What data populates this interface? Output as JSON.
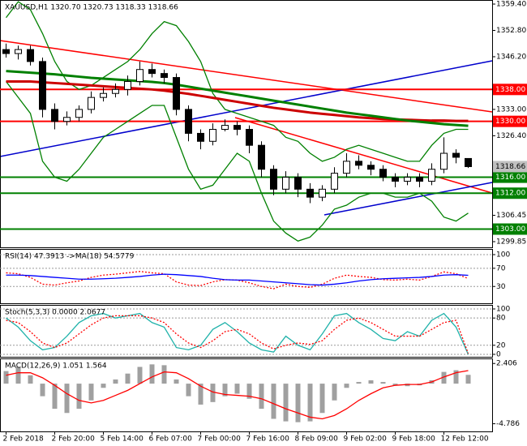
{
  "chart_data": [
    {
      "type": "candlestick",
      "title": "XAUUSD,H1  1320.70 1320.73 1318.33 1318.66",
      "categories": [
        "2 Feb 2018",
        null,
        null,
        null,
        "2 Feb 20:00",
        null,
        null,
        null,
        "5 Feb 14:00",
        null,
        null,
        null,
        "6 Feb 07:00",
        null,
        null,
        null,
        "7 Feb 00:00",
        null,
        null,
        null,
        "7 Feb 16:00",
        null,
        null,
        null,
        "8 Feb 09:00",
        null,
        null,
        null,
        "9 Feb 02:00",
        null,
        null,
        null,
        "9 Feb 18:00",
        null,
        null,
        null,
        "12 Feb 12:00",
        null,
        null
      ],
      "open": [
        1348,
        1347,
        1348,
        1345,
        1333,
        1330,
        1331,
        1333,
        1336,
        1337,
        1338,
        1340,
        1343,
        1342,
        1341,
        1333,
        1327,
        1325,
        1328,
        1329,
        1328,
        1324,
        1318,
        1313,
        1316,
        1313,
        1311,
        1313,
        1317,
        1320,
        1319,
        1318,
        1316,
        1315,
        1316,
        1315,
        1318,
        1322,
        1320.7
      ],
      "high": [
        1349.5,
        1349,
        1349,
        1346,
        1334.5,
        1332.5,
        1334,
        1337.5,
        1338.5,
        1339.5,
        1341.5,
        1345,
        1344.5,
        1343,
        1342,
        1334,
        1328,
        1329.5,
        1330.5,
        1330,
        1329,
        1325,
        1319,
        1317.5,
        1317,
        1314.5,
        1314,
        1318.5,
        1322,
        1321.5,
        1320,
        1319,
        1317,
        1317,
        1317,
        1319.5,
        1326,
        1323,
        1320.73
      ],
      "low": [
        1346,
        1345.5,
        1344,
        1331,
        1328,
        1329,
        1330,
        1332,
        1335,
        1336,
        1336.5,
        1339,
        1341,
        1339.5,
        1331.5,
        1325,
        1323,
        1324,
        1327.5,
        1326.5,
        1322,
        1316,
        1311.5,
        1312,
        1311,
        1309.5,
        1310,
        1312,
        1316,
        1318,
        1316.5,
        1315,
        1313.5,
        1314,
        1313.5,
        1314,
        1317,
        1319.5,
        1318.33
      ],
      "close": [
        1347,
        1348,
        1345,
        1333,
        1330,
        1331,
        1333,
        1336,
        1337,
        1338,
        1340,
        1343,
        1342,
        1341,
        1333,
        1327,
        1325,
        1328,
        1329,
        1328,
        1324,
        1318,
        1313,
        1316,
        1313,
        1311,
        1313,
        1317,
        1320,
        1319,
        1318,
        1316,
        1315,
        1316,
        1315,
        1318,
        1322,
        1321,
        1318.66
      ],
      "up_color": "#ffffff",
      "down_color": "#000000",
      "series": [
        {
          "color": "#008000",
          "values": [
            1356,
            1360,
            1358,
            1352,
            1345,
            1340,
            1338,
            1339,
            1341,
            1343,
            1345,
            1348,
            1352,
            1355,
            1354,
            1350,
            1345,
            1337,
            1333,
            1332,
            1331,
            1330,
            1329,
            1326,
            1325,
            1322,
            1320,
            1321,
            1323,
            1324,
            1323,
            1322,
            1321,
            1320,
            1320,
            1324,
            1327,
            1328,
            1328
          ]
        },
        {
          "color": "#008000",
          "values": [
            1340,
            1336,
            1332,
            1320,
            1316,
            1315,
            1318,
            1322,
            1326,
            1328,
            1330,
            1332,
            1334,
            1334,
            1326,
            1318,
            1313,
            1314,
            1318,
            1322,
            1320,
            1312,
            1305,
            1302,
            1300,
            1301,
            1304,
            1308,
            1309,
            1311,
            1312,
            1312,
            1311,
            1311,
            1312,
            1310,
            1306,
            1305,
            1307
          ]
        },
        {
          "color": "#cc0000",
          "style": "thick",
          "values": [
            1340,
            1340,
            1340,
            1339.8,
            1339.6,
            1339.4,
            1339.2,
            1339,
            1338.8,
            1338.6,
            1338.4,
            1338.2,
            1338,
            1337.7,
            1337.3,
            1336.9,
            1336.4,
            1335.9,
            1335.4,
            1334.9,
            1334.4,
            1333.9,
            1333.4,
            1333,
            1332.6,
            1332.2,
            1331.9,
            1331.6,
            1331.3,
            1331,
            1330.8,
            1330.6,
            1330.5,
            1330.4,
            1330.3,
            1330.2,
            1330.2,
            1330.1,
            1330.1
          ]
        },
        {
          "color": "#008000",
          "style": "thick",
          "values": [
            1342.6,
            1342.4,
            1342.2,
            1342,
            1341.8,
            1341.5,
            1341.2,
            1340.9,
            1340.7,
            1340.5,
            1340.3,
            1340.1,
            1339.9,
            1339.6,
            1339.2,
            1338.7,
            1338.2,
            1337.7,
            1337.2,
            1336.7,
            1336.2,
            1335.7,
            1335.2,
            1334.7,
            1334.2,
            1333.7,
            1333.2,
            1332.7,
            1332.2,
            1331.8,
            1331.4,
            1331,
            1330.6,
            1330.2,
            1329.9,
            1329.6,
            1329.3,
            1329.1,
            1328.9
          ]
        }
      ],
      "ylim": [
        1298.43,
        1360.42
      ],
      "yticks": [
        {
          "value": 1359.4,
          "label": "1359.40"
        },
        {
          "value": 1352.8,
          "label": "1352.80"
        },
        {
          "value": 1346.2,
          "label": "1346.20"
        },
        {
          "value": 1333,
          "label": "1333.00"
        },
        {
          "value": 1326.4,
          "label": "1326.40"
        },
        1306.45,
        1299.85
      ],
      "levels": [
        {
          "value": 1338,
          "label": "1338.00",
          "color": "#ff0000"
        },
        {
          "value": 1330,
          "label": "1330.00",
          "color": "#ff0000"
        },
        {
          "value": 1316,
          "label": "1316.00",
          "color": "#008000"
        },
        {
          "value": 1312,
          "label": "1312.00",
          "color": "#008000"
        },
        {
          "value": 1303,
          "label": "1303.00",
          "color": "#008000"
        }
      ],
      "last_price": {
        "value": 1318.66,
        "label": "1318.66",
        "color": "#c0c0c0"
      },
      "grid": false
    },
    {
      "type": "line",
      "title": "RSI(14) 47.3913  ->MA(18) 54.5779",
      "series": [
        {
          "color": "#ff0000",
          "style": "dashed",
          "values": [
            60,
            58,
            50,
            35,
            33,
            38,
            42,
            50,
            55,
            57,
            60,
            63,
            60,
            58,
            40,
            33,
            32,
            40,
            45,
            44,
            38,
            30,
            25,
            35,
            30,
            28,
            35,
            48,
            55,
            52,
            50,
            45,
            44,
            46,
            44,
            52,
            62,
            58,
            47.39
          ]
        },
        {
          "color": "#0000ff",
          "values": [
            55,
            55,
            54,
            52,
            50,
            48,
            46,
            46,
            47,
            48,
            50,
            52,
            55,
            57,
            56,
            54,
            52,
            48,
            45,
            44,
            44,
            42,
            40,
            38,
            36,
            34,
            33,
            35,
            38,
            42,
            45,
            47,
            48,
            49,
            50,
            52,
            55,
            56,
            54.58
          ]
        }
      ],
      "ylim": [
        -7,
        112.5
      ],
      "yticks": [
        100,
        70,
        30
      ],
      "grid": true
    },
    {
      "type": "line",
      "title": "Stoch(5,3,3) 0.0000 2.0677",
      "series": [
        {
          "color": "#20b2aa",
          "values": [
            80,
            60,
            30,
            10,
            15,
            40,
            70,
            85,
            90,
            80,
            85,
            90,
            70,
            60,
            15,
            10,
            20,
            55,
            70,
            50,
            25,
            10,
            5,
            40,
            20,
            10,
            45,
            85,
            90,
            70,
            55,
            35,
            30,
            50,
            40,
            75,
            90,
            60,
            0
          ]
        },
        {
          "color": "#ff0000",
          "style": "dashed",
          "values": [
            75,
            70,
            50,
            25,
            15,
            25,
            45,
            65,
            80,
            85,
            85,
            85,
            80,
            70,
            45,
            25,
            15,
            30,
            50,
            55,
            45,
            25,
            12,
            20,
            25,
            22,
            30,
            55,
            75,
            80,
            70,
            55,
            40,
            40,
            40,
            55,
            70,
            75,
            2.07
          ]
        }
      ],
      "ylim": [
        -5.4,
        108.9
      ],
      "yticks": [
        100,
        80,
        20,
        0
      ],
      "grid": true
    },
    {
      "type": "bar",
      "title": "MACD(12,26,9) 1.051 1.564",
      "series": [
        {
          "type": "bar",
          "color": "#a0a0a0",
          "values": [
            1.5,
            2,
            1,
            -1.5,
            -3,
            -3.5,
            -3,
            -2,
            -0.5,
            0.5,
            1.2,
            2,
            2.3,
            2.2,
            0.5,
            -1.5,
            -2.5,
            -2.2,
            -1.5,
            -1.2,
            -1.8,
            -3,
            -4.2,
            -4.5,
            -4.6,
            -4.5,
            -3.5,
            -2,
            -0.5,
            0.2,
            0.4,
            0.2,
            -0.2,
            -0.3,
            -0.2,
            0.4,
            1.4,
            1.6,
            1.05
          ]
        },
        {
          "type": "line",
          "color": "#ff0000",
          "values": [
            1,
            1.3,
            1.3,
            0.7,
            -0.2,
            -1.2,
            -2,
            -2.3,
            -2,
            -1.4,
            -0.8,
            0,
            0.8,
            1.4,
            1.3,
            0.6,
            -0.3,
            -1,
            -1.3,
            -1.4,
            -1.5,
            -1.8,
            -2.4,
            -3,
            -3.5,
            -4,
            -4.2,
            -3.8,
            -3,
            -2,
            -1.2,
            -0.5,
            -0.2,
            -0.1,
            -0.1,
            0.2,
            0.8,
            1.3,
            1.56
          ]
        }
      ],
      "ylim": [
        -5.7,
        3.01
      ],
      "yticks": [
        2.406,
        -4.786
      ],
      "grid": false
    }
  ]
}
